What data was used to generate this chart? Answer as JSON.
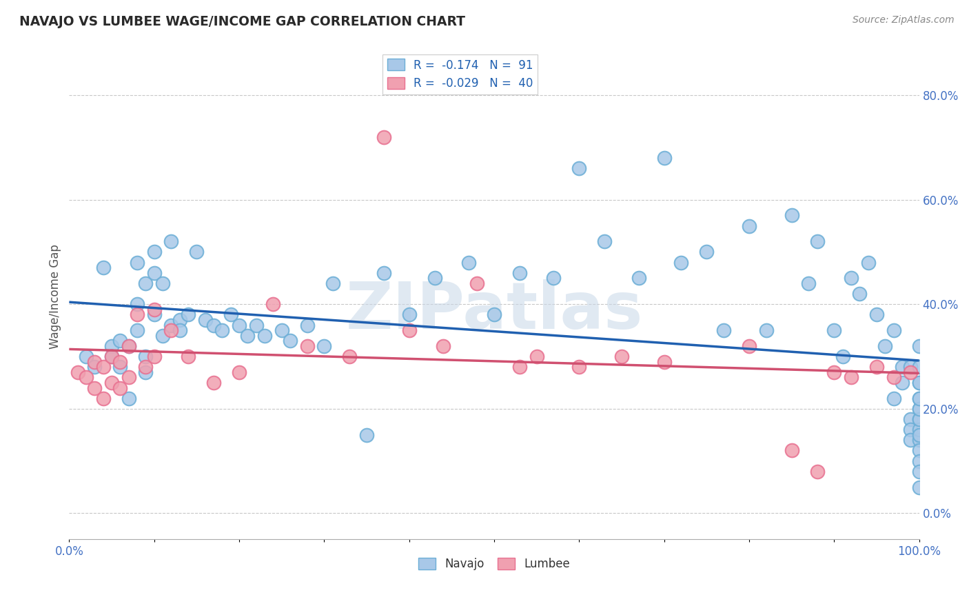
{
  "title": "NAVAJO VS LUMBEE WAGE/INCOME GAP CORRELATION CHART",
  "source": "Source: ZipAtlas.com",
  "ylabel": "Wage/Income Gap",
  "xlim": [
    0.0,
    1.0
  ],
  "ylim": [
    -0.05,
    0.88
  ],
  "yticks": [
    0.0,
    0.2,
    0.4,
    0.6,
    0.8
  ],
  "ytick_labels": [
    "0.0%",
    "20.0%",
    "40.0%",
    "60.0%",
    "80.0%"
  ],
  "navajo_color": "#a8c8e8",
  "lumbee_color": "#f0a0b0",
  "navajo_edge_color": "#6baed6",
  "lumbee_edge_color": "#e87090",
  "navajo_line_color": "#2060b0",
  "lumbee_line_color": "#d05070",
  "navajo_R": -0.174,
  "navajo_N": 91,
  "lumbee_R": -0.029,
  "lumbee_N": 40,
  "watermark": "ZIPatlas",
  "background_color": "#ffffff",
  "navajo_x": [
    0.02,
    0.03,
    0.04,
    0.05,
    0.05,
    0.06,
    0.06,
    0.07,
    0.07,
    0.08,
    0.08,
    0.08,
    0.09,
    0.09,
    0.09,
    0.1,
    0.1,
    0.1,
    0.11,
    0.11,
    0.12,
    0.12,
    0.13,
    0.13,
    0.14,
    0.15,
    0.16,
    0.17,
    0.18,
    0.19,
    0.2,
    0.21,
    0.22,
    0.23,
    0.25,
    0.26,
    0.28,
    0.3,
    0.31,
    0.35,
    0.37,
    0.4,
    0.43,
    0.47,
    0.5,
    0.53,
    0.57,
    0.6,
    0.63,
    0.67,
    0.7,
    0.72,
    0.75,
    0.77,
    0.8,
    0.82,
    0.85,
    0.87,
    0.88,
    0.9,
    0.91,
    0.92,
    0.93,
    0.94,
    0.95,
    0.96,
    0.97,
    0.97,
    0.98,
    0.98,
    0.99,
    0.99,
    0.99,
    0.99,
    1.0,
    1.0,
    1.0,
    1.0,
    1.0,
    1.0,
    1.0,
    1.0,
    1.0,
    1.0,
    1.0,
    1.0,
    1.0,
    1.0,
    1.0,
    1.0,
    1.0
  ],
  "navajo_y": [
    0.3,
    0.28,
    0.47,
    0.32,
    0.3,
    0.33,
    0.28,
    0.22,
    0.32,
    0.35,
    0.48,
    0.4,
    0.44,
    0.3,
    0.27,
    0.5,
    0.46,
    0.38,
    0.44,
    0.34,
    0.52,
    0.36,
    0.37,
    0.35,
    0.38,
    0.5,
    0.37,
    0.36,
    0.35,
    0.38,
    0.36,
    0.34,
    0.36,
    0.34,
    0.35,
    0.33,
    0.36,
    0.32,
    0.44,
    0.15,
    0.46,
    0.38,
    0.45,
    0.48,
    0.38,
    0.46,
    0.45,
    0.66,
    0.52,
    0.45,
    0.68,
    0.48,
    0.5,
    0.35,
    0.55,
    0.35,
    0.57,
    0.44,
    0.52,
    0.35,
    0.3,
    0.45,
    0.42,
    0.48,
    0.38,
    0.32,
    0.35,
    0.22,
    0.28,
    0.25,
    0.28,
    0.18,
    0.16,
    0.14,
    0.25,
    0.32,
    0.25,
    0.18,
    0.2,
    0.22,
    0.14,
    0.16,
    0.18,
    0.2,
    0.22,
    0.15,
    0.28,
    0.12,
    0.1,
    0.08,
    0.05
  ],
  "lumbee_x": [
    0.01,
    0.02,
    0.03,
    0.03,
    0.04,
    0.04,
    0.05,
    0.05,
    0.06,
    0.06,
    0.07,
    0.07,
    0.08,
    0.09,
    0.1,
    0.1,
    0.12,
    0.14,
    0.17,
    0.2,
    0.24,
    0.28,
    0.33,
    0.37,
    0.4,
    0.44,
    0.48,
    0.53,
    0.55,
    0.6,
    0.65,
    0.7,
    0.8,
    0.85,
    0.88,
    0.9,
    0.92,
    0.95,
    0.97,
    0.99
  ],
  "lumbee_y": [
    0.27,
    0.26,
    0.29,
    0.24,
    0.28,
    0.22,
    0.3,
    0.25,
    0.29,
    0.24,
    0.32,
    0.26,
    0.38,
    0.28,
    0.39,
    0.3,
    0.35,
    0.3,
    0.25,
    0.27,
    0.4,
    0.32,
    0.3,
    0.72,
    0.35,
    0.32,
    0.44,
    0.28,
    0.3,
    0.28,
    0.3,
    0.29,
    0.32,
    0.12,
    0.08,
    0.27,
    0.26,
    0.28,
    0.26,
    0.27
  ]
}
